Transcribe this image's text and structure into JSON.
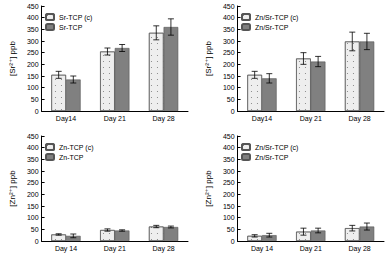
{
  "chart_data": [
    {
      "type": "bar",
      "ylabel": "[Sr²⁺] ppb",
      "categories": [
        "Day14",
        "Day 21",
        "Day 28"
      ],
      "series": [
        {
          "name": "Sr-TCP (c)",
          "color": "#eeeeee",
          "values": [
            155,
            255,
            335
          ],
          "errors": [
            15,
            15,
            30
          ]
        },
        {
          "name": "Sr-TCP",
          "color": "#808080",
          "values": [
            135,
            270,
            360
          ],
          "errors": [
            15,
            15,
            35
          ]
        }
      ],
      "ylim": [
        0,
        450
      ],
      "yticks": [
        0,
        50,
        100,
        150,
        200,
        250,
        300,
        350,
        400,
        450
      ],
      "grid": false,
      "legend": "upper left"
    },
    {
      "type": "bar",
      "ylabel": "[Sr²⁺] ppb",
      "categories": [
        "Day14",
        "Day 21",
        "Day 28"
      ],
      "series": [
        {
          "name": "Zn/Sr-TCP (c)",
          "color": "#eeeeee",
          "values": [
            155,
            225,
            298
          ],
          "errors": [
            15,
            25,
            40
          ]
        },
        {
          "name": "Zn/Sr-TCP",
          "color": "#808080",
          "values": [
            140,
            212,
            298
          ],
          "errors": [
            20,
            22,
            35
          ]
        }
      ],
      "ylim": [
        0,
        450
      ],
      "yticks": [
        0,
        50,
        100,
        150,
        200,
        250,
        300,
        350,
        400,
        450
      ],
      "grid": false,
      "legend": "upper left"
    },
    {
      "type": "bar",
      "ylabel": "[Zn²⁺] ppb",
      "categories": [
        "Day 14",
        "Day 21",
        "Day 28"
      ],
      "series": [
        {
          "name": "Zn-TCP (c)",
          "color": "#eeeeee",
          "values": [
            28,
            47,
            62
          ],
          "errors": [
            3,
            5,
            5
          ]
        },
        {
          "name": "Zn-TCP",
          "color": "#808080",
          "values": [
            22,
            45,
            60
          ],
          "errors": [
            8,
            3,
            4
          ]
        }
      ],
      "ylim": [
        0,
        450
      ],
      "yticks": [
        0,
        50,
        100,
        150,
        200,
        250,
        300,
        350,
        400,
        450
      ],
      "grid": false,
      "legend": "upper left"
    },
    {
      "type": "bar",
      "ylabel": "[Zn²⁺] ppb",
      "categories": [
        "Day 14",
        "Day 21",
        "Day 28"
      ],
      "series": [
        {
          "name": "Zn/Sr-TCP (c)",
          "color": "#eeeeee",
          "values": [
            22,
            40,
            55
          ],
          "errors": [
            5,
            15,
            12
          ]
        },
        {
          "name": "Zn/Sr-TCP",
          "color": "#808080",
          "values": [
            25,
            45,
            62
          ],
          "errors": [
            8,
            10,
            15
          ]
        }
      ],
      "ylim": [
        0,
        450
      ],
      "yticks": [
        0,
        50,
        100,
        150,
        200,
        250,
        300,
        350,
        400,
        450
      ],
      "grid": false,
      "legend": "upper left"
    }
  ]
}
